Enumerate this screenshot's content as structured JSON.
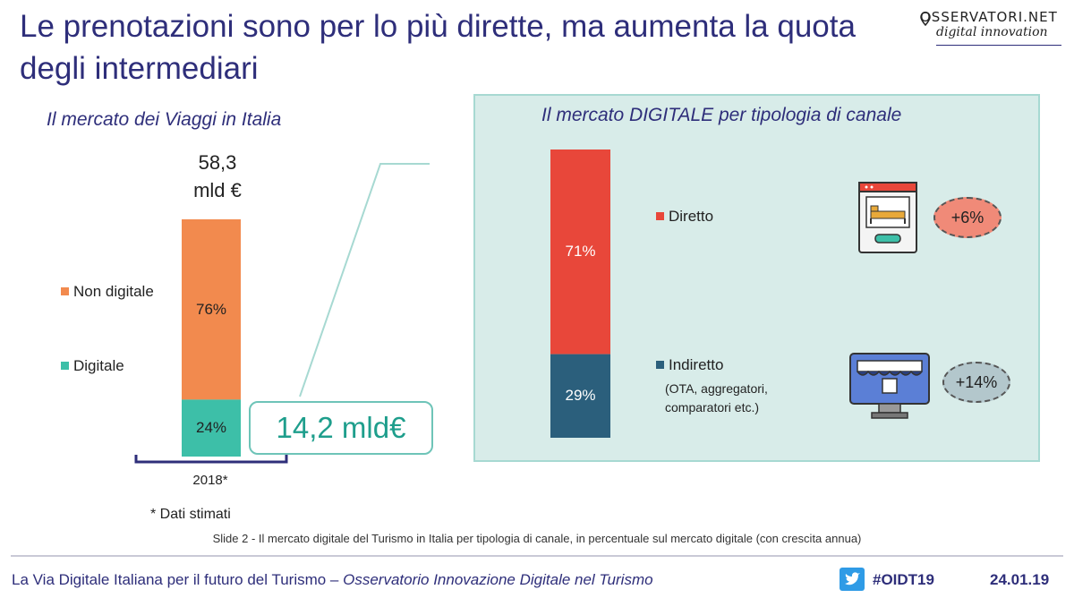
{
  "title": "Le prenotazioni sono per lo più dirette, ma aumenta la quota degli intermediari",
  "logo": {
    "top": "OSSERVATORI.NET",
    "bottom": "digital innovation"
  },
  "left_chart": {
    "subtitle": "Il mercato dei Viaggi in Italia",
    "total_value": "58,3",
    "total_unit": "mld €",
    "callout": "14,2 mld€",
    "footnote": "* Dati stimati"
  },
  "right_chart": {
    "subtitle": "Il mercato DIGITALE per tipologia di canale",
    "indirect_sub_1": "(OTA, aggregatori,",
    "indirect_sub_2": "comparatori etc.)",
    "growth_direct": "+6%",
    "growth_indirect": "+14%"
  },
  "chart_data": [
    {
      "type": "bar",
      "stacked": true,
      "title": "Il mercato dei Viaggi in Italia",
      "categories": [
        "2018*"
      ],
      "series": [
        {
          "name": "Digitale",
          "values": [
            24
          ],
          "label": "24%",
          "color": "#3dbfa8"
        },
        {
          "name": "Non digitale",
          "values": [
            76
          ],
          "label": "76%",
          "color": "#f28a4e"
        }
      ],
      "ylim": [
        0,
        100
      ]
    },
    {
      "type": "bar",
      "stacked": true,
      "title": "Il mercato DIGITALE per tipologia di canale",
      "categories": [
        ""
      ],
      "series": [
        {
          "name": "Indiretto",
          "values": [
            29
          ],
          "label": "29%",
          "color": "#2b5f7c"
        },
        {
          "name": "Diretto",
          "values": [
            71
          ],
          "label": "71%",
          "color": "#e8473a"
        }
      ],
      "ylim": [
        0,
        100
      ]
    }
  ],
  "caption": "Slide 2 - Il mercato digitale del Turismo in Italia per tipologia di canale, in percentuale sul mercato digitale (con crescita annua)",
  "footer": {
    "left_plain": "La Via Digitale Italiana per il futuro del Turismo – ",
    "left_italic": "Osservatorio Innovazione Digitale nel Turismo",
    "hashtag": "#OIDT19",
    "date": "24.01.19"
  }
}
